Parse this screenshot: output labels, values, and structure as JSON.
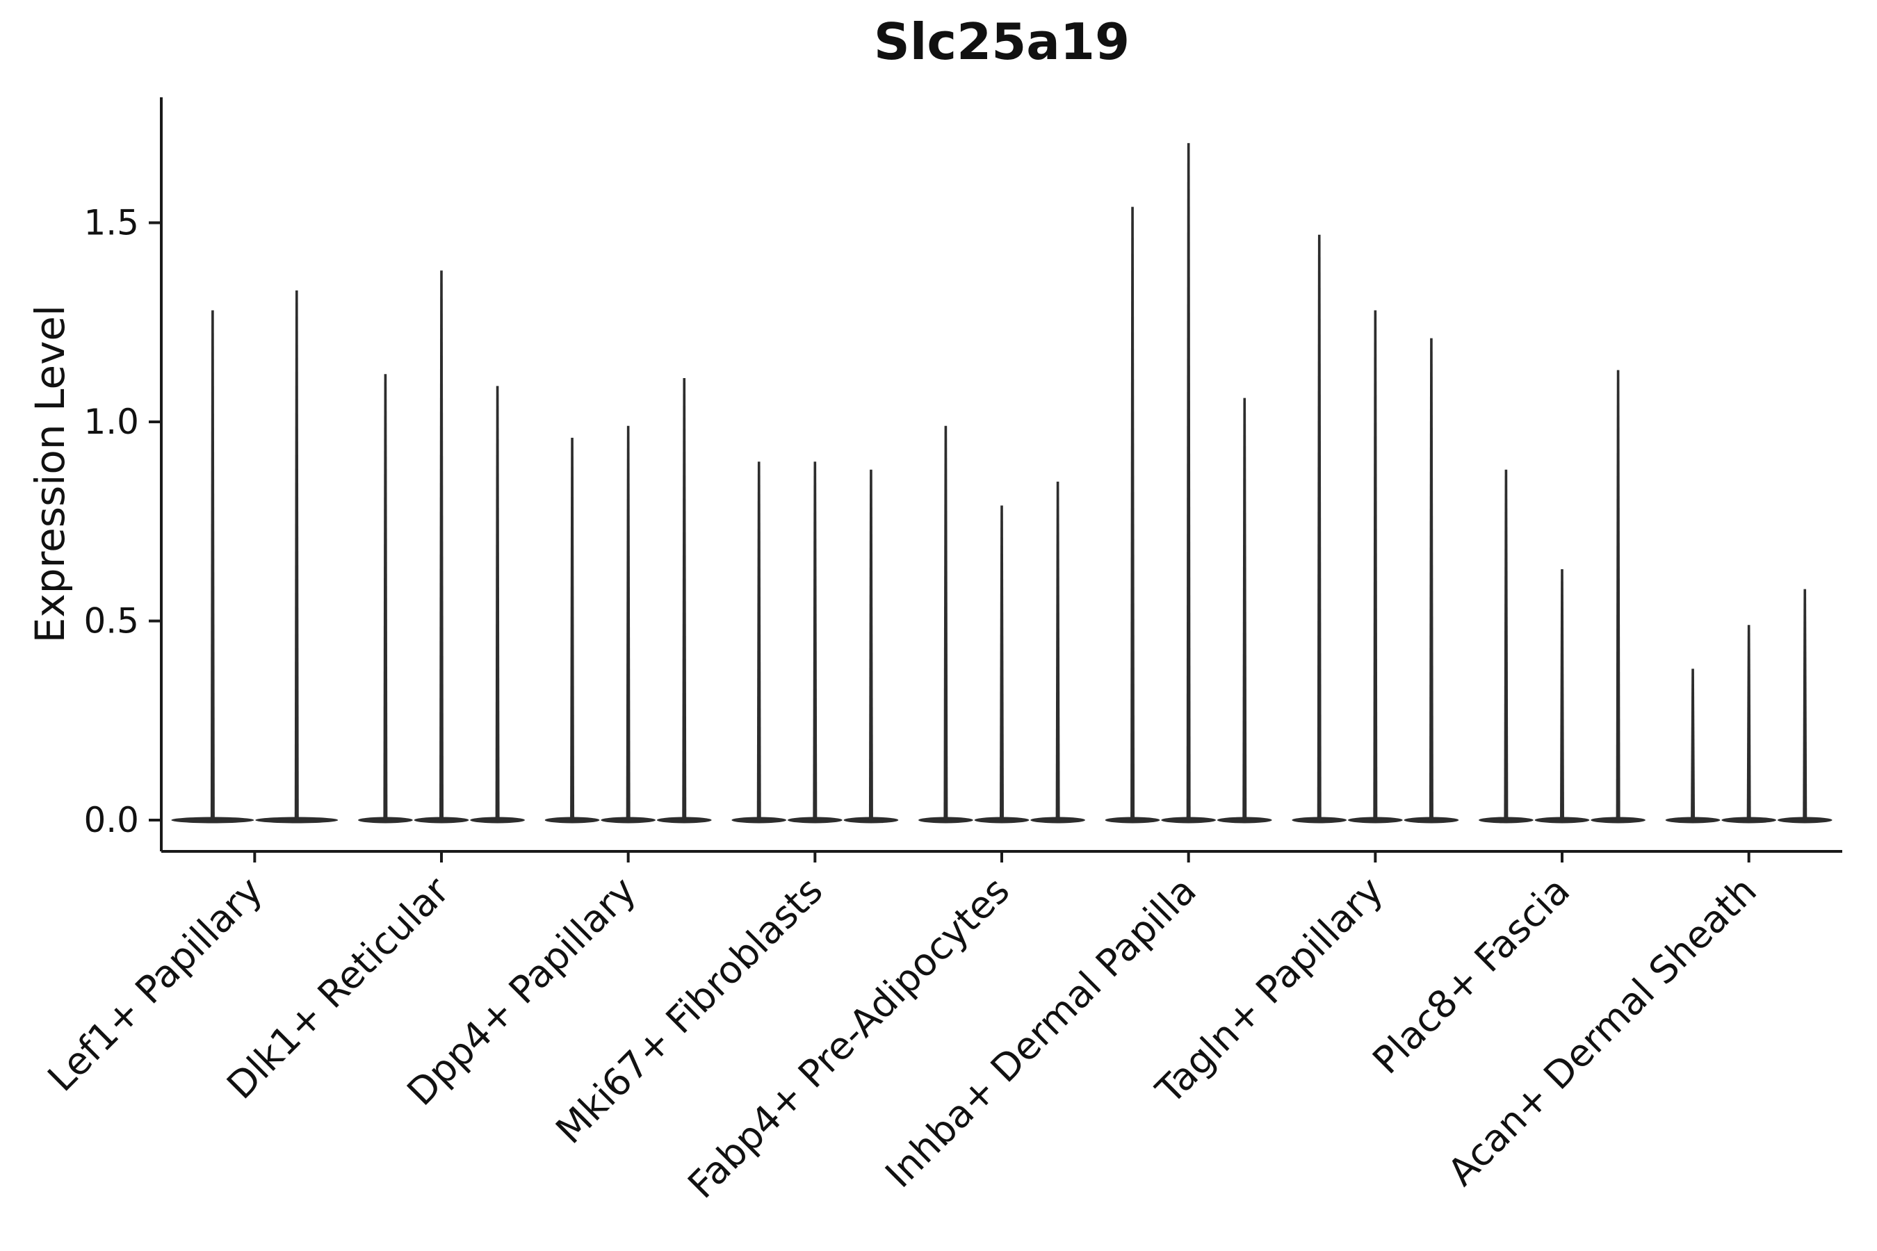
{
  "chart_data": {
    "type": "violin",
    "title": "Slc25a19",
    "ylabel": "Expression Level",
    "xlabel": "",
    "grid": false,
    "legend_position": "none",
    "violin_color": "#2d2d2d",
    "axis_color": "#1a1a1a",
    "ylim": [
      0,
      1.8
    ],
    "ytick_labels": [
      "0.0",
      "0.5",
      "1.0",
      "1.5"
    ],
    "ytick_values": [
      0.0,
      0.5,
      1.0,
      1.5
    ],
    "categories": [
      "Lef1+ Papillary",
      "Dlk1+ Reticular",
      "Dpp4+ Papillary",
      "Mki67+ Fibroblasts",
      "Fabp4+ Pre-Adipocytes",
      "Inhba+ Dermal Papilla",
      "Tagln+ Papillary",
      "Plac8+ Fascia",
      "Acan+ Dermal Sheath"
    ],
    "groups": [
      {
        "category": "Lef1+ Papillary",
        "violin_maxima": [
          1.28,
          1.33
        ]
      },
      {
        "category": "Dlk1+ Reticular",
        "violin_maxima": [
          1.12,
          1.38,
          1.09
        ]
      },
      {
        "category": "Dpp4+ Papillary",
        "violin_maxima": [
          0.96,
          0.99,
          1.11
        ]
      },
      {
        "category": "Mki67+ Fibroblasts",
        "violin_maxima": [
          0.9,
          0.9,
          0.88
        ]
      },
      {
        "category": "Fabp4+ Pre-Adipocytes",
        "violin_maxima": [
          0.99,
          0.79,
          0.85
        ]
      },
      {
        "category": "Inhba+ Dermal Papilla",
        "violin_maxima": [
          1.54,
          1.7,
          1.06
        ]
      },
      {
        "category": "Tagln+ Papillary",
        "violin_maxima": [
          1.47,
          1.28,
          1.21
        ]
      },
      {
        "category": "Plac8+ Fascia",
        "violin_maxima": [
          0.88,
          0.63,
          1.13
        ]
      },
      {
        "category": "Acan+ Dermal Sheath",
        "violin_maxima": [
          0.38,
          0.49,
          0.58
        ]
      }
    ],
    "note": "Most expression mass at 0 for every violin; thin spikes reach the listed maxima."
  }
}
